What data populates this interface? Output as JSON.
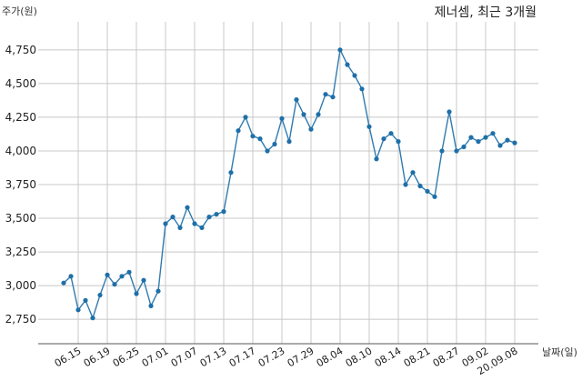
{
  "chart_data": {
    "type": "line",
    "title": "제너셈, 최근 3개월",
    "ylabel": "주가(원)",
    "xlabel": "날짜(일)",
    "ylim": [
      2650,
      4850
    ],
    "yticks": [
      2750,
      3000,
      3250,
      3500,
      3750,
      4000,
      4250,
      4500,
      4750
    ],
    "ytick_labels": [
      "2,750",
      "3,000",
      "3,250",
      "3,500",
      "3,750",
      "4,000",
      "4,250",
      "4,500",
      "4,750"
    ],
    "xtick_labels": [
      {
        "label": "06.15",
        "index": 2
      },
      {
        "label": "06.19",
        "index": 6
      },
      {
        "label": "06.25",
        "index": 10
      },
      {
        "label": "07.01",
        "index": 14
      },
      {
        "label": "07.07",
        "index": 18
      },
      {
        "label": "07.13",
        "index": 22
      },
      {
        "label": "07.17",
        "index": 26
      },
      {
        "label": "07.23",
        "index": 30
      },
      {
        "label": "07.29",
        "index": 34
      },
      {
        "label": "08.04",
        "index": 38
      },
      {
        "label": "08.10",
        "index": 42
      },
      {
        "label": "08.14",
        "index": 46
      },
      {
        "label": "08.21",
        "index": 50
      },
      {
        "label": "08.27",
        "index": 54
      },
      {
        "label": "09.02",
        "index": 58
      },
      {
        "label": "20.09.08",
        "index": 62
      }
    ],
    "grid": true,
    "series": [
      {
        "color": "#2f7bb0",
        "values": [
          3020,
          3070,
          2820,
          2890,
          2760,
          2930,
          3080,
          3010,
          3070,
          3100,
          2940,
          3040,
          2850,
          2960,
          3460,
          3510,
          3430,
          3580,
          3460,
          3430,
          3510,
          3530,
          3550,
          3840,
          4150,
          4250,
          4110,
          4090,
          4000,
          4050,
          4240,
          4070,
          4380,
          4270,
          4160,
          4270,
          4420,
          4400,
          4750,
          4640,
          4560,
          4460,
          4180,
          3940,
          4090,
          4130,
          4070,
          3750,
          3840,
          3740,
          3700,
          3660,
          4000,
          4290,
          4000,
          4030,
          4100,
          4070,
          4100,
          4130,
          4040,
          4080,
          4060
        ]
      }
    ]
  }
}
